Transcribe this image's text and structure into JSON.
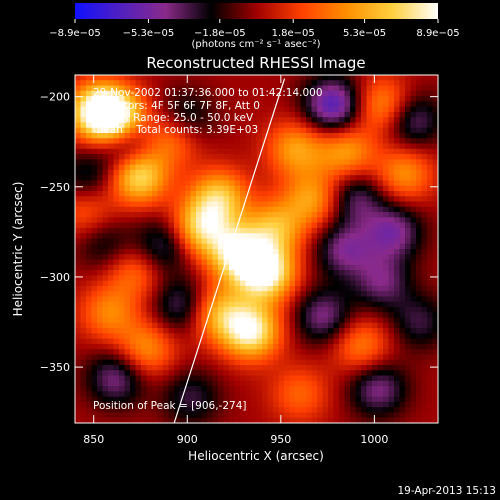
{
  "chart_data": {
    "type": "heatmap",
    "title": "Reconstructed RHESSI Image",
    "xlabel": "Heliocentric X (arcsec)",
    "ylabel": "Heliocentric Y (arcsec)",
    "xlim": [
      840,
      1034
    ],
    "ylim": [
      -381,
      -188
    ],
    "xticks": [
      850,
      900,
      950,
      1000
    ],
    "yticks": [
      -200,
      -250,
      -300,
      -350
    ],
    "xtick_labels": [
      "850",
      "900",
      "950",
      "1000"
    ],
    "ytick_labels": [
      "−200",
      "−250",
      "−300",
      "−350"
    ],
    "colorbar": {
      "min": -8.9e-05,
      "max": 8.9e-05,
      "ticks": [
        -8.9e-05,
        -5.3e-05,
        -1.8e-05,
        1.8e-05,
        5.3e-05,
        8.9e-05
      ],
      "tick_labels": [
        "−8.9e−05",
        "−5.3e−05",
        "−1.8e−05",
        "1.8e−05",
        "5.3e−05",
        "8.9e−05"
      ],
      "units": "(photons cm⁻² s⁻¹ asec⁻²)",
      "colors": [
        "#1010ff",
        "#5020c0",
        "#8a2a8a",
        "#000000",
        "#a00000",
        "#ff4000",
        "#ff9000",
        "#ffd040",
        "#ffffff"
      ]
    },
    "annotations": [
      "29-Nov-2002 01:37:36.000 to 01:42:14.000",
      "Detectors: 4F 5F 6F 7F 8F, Att 0",
      "Energy Range: 25.0 - 50.0 keV",
      "Clean    Total counts: 3.39E+03"
    ],
    "peak_label": "Position of Peak = [906,-274]",
    "peak": [
      906,
      -274
    ],
    "limb_line": [
      [
        893,
        -381
      ],
      [
        952,
        -190
      ]
    ],
    "blobs": [
      {
        "x": 862,
        "y": -212,
        "v": 1.0
      },
      {
        "x": 852,
        "y": -208,
        "v": 0.9
      },
      {
        "x": 874,
        "y": -244,
        "v": 0.85
      },
      {
        "x": 846,
        "y": -263,
        "v": 0.35
      },
      {
        "x": 892,
        "y": -222,
        "v": 0.55
      },
      {
        "x": 907,
        "y": -273,
        "v": 0.75
      },
      {
        "x": 917,
        "y": -256,
        "v": 0.7
      },
      {
        "x": 927,
        "y": -287,
        "v": 0.9
      },
      {
        "x": 942,
        "y": -298,
        "v": 1.0
      },
      {
        "x": 934,
        "y": -330,
        "v": 0.95
      },
      {
        "x": 916,
        "y": -320,
        "v": 0.6
      },
      {
        "x": 947,
        "y": -273,
        "v": 0.6
      },
      {
        "x": 958,
        "y": -229,
        "v": 0.55
      },
      {
        "x": 967,
        "y": -257,
        "v": 0.55
      },
      {
        "x": 985,
        "y": -231,
        "v": 0.55
      },
      {
        "x": 1005,
        "y": -205,
        "v": 0.55
      },
      {
        "x": 1016,
        "y": -243,
        "v": 0.5
      },
      {
        "x": 993,
        "y": -338,
        "v": 0.45
      },
      {
        "x": 960,
        "y": -365,
        "v": 0.35
      },
      {
        "x": 872,
        "y": -297,
        "v": 0.4
      },
      {
        "x": 858,
        "y": -320,
        "v": 0.45
      },
      {
        "x": 878,
        "y": -340,
        "v": 0.5
      },
      {
        "x": 867,
        "y": -225,
        "v": -0.55
      },
      {
        "x": 898,
        "y": -213,
        "v": -0.45
      },
      {
        "x": 978,
        "y": -205,
        "v": -0.75
      },
      {
        "x": 1020,
        "y": -213,
        "v": -0.5
      },
      {
        "x": 990,
        "y": -256,
        "v": -0.45
      },
      {
        "x": 1010,
        "y": -275,
        "v": -0.55
      },
      {
        "x": 984,
        "y": -285,
        "v": -0.5
      },
      {
        "x": 1004,
        "y": -303,
        "v": -0.45
      },
      {
        "x": 1024,
        "y": -325,
        "v": -0.35
      },
      {
        "x": 973,
        "y": -322,
        "v": -0.5
      },
      {
        "x": 1002,
        "y": -362,
        "v": -0.5
      },
      {
        "x": 887,
        "y": -283,
        "v": -0.45
      },
      {
        "x": 856,
        "y": -282,
        "v": -0.3
      },
      {
        "x": 897,
        "y": -316,
        "v": -0.45
      },
      {
        "x": 862,
        "y": -356,
        "v": -0.5
      },
      {
        "x": 902,
        "y": -367,
        "v": -0.35
      },
      {
        "x": 847,
        "y": -245,
        "v": -0.35
      }
    ]
  },
  "footer": {
    "date": "19-Apr-2013 15:13"
  }
}
